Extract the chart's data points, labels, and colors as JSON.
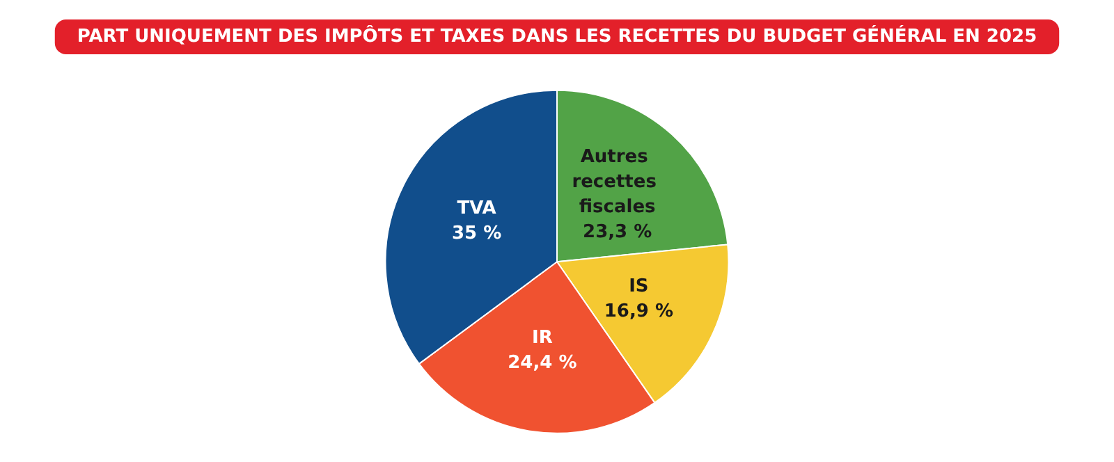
{
  "chart_data": {
    "type": "pie",
    "title": "PART UNIQUEMENT DES IMPÔTS ET TAXES DANS LES RECETTES DU BUDGET GÉNÉRAL EN 2025",
    "categories": [
      "Autres recettes fiscales",
      "IS",
      "IR",
      "TVA"
    ],
    "values": [
      23.3,
      16.9,
      24.4,
      35
    ],
    "value_labels": [
      "23,3 %",
      "16,9 %",
      "24,4 %",
      "35 %"
    ],
    "colors": [
      "#52a347",
      "#f5c932",
      "#f05230",
      "#114e8c"
    ],
    "legend": false
  }
}
